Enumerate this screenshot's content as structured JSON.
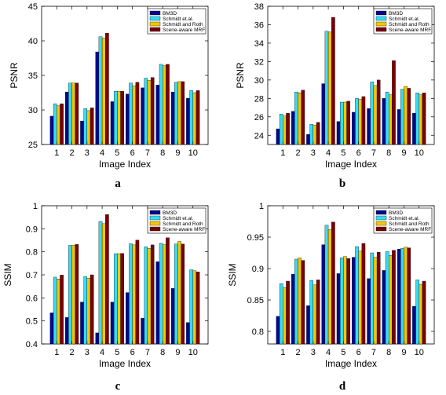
{
  "chart_data": [
    {
      "type": "bar",
      "panel_letter": "a",
      "categories": [
        "1",
        "2",
        "3",
        "4",
        "5",
        "6",
        "7",
        "8",
        "9",
        "10"
      ],
      "xlabel": "Image Index",
      "ylabel": "PSNR",
      "ylim": [
        25,
        45
      ],
      "yticks": [
        25,
        30,
        35,
        40,
        45
      ],
      "legend_position": "top-right",
      "series": [
        {
          "name": "BM3D",
          "color": "#000a8c",
          "values": [
            29.1,
            32.6,
            28.4,
            38.4,
            31.2,
            32.3,
            33.2,
            33.6,
            32.6,
            31.7
          ]
        },
        {
          "name": "Schmidt et.al.",
          "color": "#35dcf5",
          "values": [
            30.9,
            33.9,
            30.2,
            40.6,
            32.7,
            33.9,
            34.6,
            36.6,
            34.0,
            32.8
          ]
        },
        {
          "name": "Schmidt and Roth",
          "color": "#f2c800",
          "values": [
            30.6,
            33.9,
            29.9,
            40.4,
            32.7,
            33.5,
            34.3,
            36.4,
            34.1,
            32.5
          ]
        },
        {
          "name": "Scene-aware MRF",
          "color": "#7a0000",
          "values": [
            30.9,
            33.9,
            30.3,
            41.1,
            32.7,
            34.0,
            34.7,
            36.6,
            34.1,
            32.8
          ]
        }
      ]
    },
    {
      "type": "bar",
      "panel_letter": "b",
      "categories": [
        "1",
        "2",
        "3",
        "4",
        "5",
        "6",
        "7",
        "8",
        "9",
        "10"
      ],
      "xlabel": "Image Index",
      "ylabel": "PSNR",
      "ylim": [
        23,
        38
      ],
      "yticks": [
        24,
        26,
        28,
        30,
        32,
        34,
        36,
        38
      ],
      "legend_position": "top-right",
      "series": [
        {
          "name": "BM3D",
          "color": "#000a8c",
          "values": [
            24.7,
            26.6,
            24.1,
            29.6,
            25.5,
            26.5,
            26.9,
            28.0,
            26.8,
            26.4
          ]
        },
        {
          "name": "Schmidt et.al.",
          "color": "#35dcf5",
          "values": [
            26.3,
            28.7,
            25.2,
            35.3,
            27.6,
            28.0,
            29.8,
            28.7,
            29.0,
            28.6
          ]
        },
        {
          "name": "Schmidt and Roth",
          "color": "#f2c800",
          "values": [
            26.1,
            28.6,
            25.1,
            35.2,
            27.6,
            27.9,
            29.4,
            28.4,
            29.3,
            28.4
          ]
        },
        {
          "name": "Scene-aware MRF",
          "color": "#7a0000",
          "values": [
            26.4,
            28.9,
            25.4,
            36.8,
            27.7,
            28.2,
            30.0,
            32.1,
            29.1,
            28.6
          ]
        }
      ]
    },
    {
      "type": "bar",
      "panel_letter": "c",
      "categories": [
        "1",
        "2",
        "3",
        "4",
        "5",
        "6",
        "7",
        "8",
        "9",
        "10"
      ],
      "xlabel": "Image Index",
      "ylabel": "SSIM",
      "ylim": [
        0.4,
        1.0
      ],
      "yticks": [
        0.4,
        0.5,
        0.6,
        0.7,
        0.8,
        0.9,
        1
      ],
      "legend_position": "top-right",
      "series": [
        {
          "name": "BM3D",
          "color": "#000a8c",
          "values": [
            0.535,
            0.515,
            0.582,
            0.448,
            0.582,
            0.623,
            0.512,
            0.757,
            0.641,
            0.493
          ]
        },
        {
          "name": "Schmidt et.al.",
          "color": "#35dcf5",
          "values": [
            0.69,
            0.828,
            0.693,
            0.932,
            0.792,
            0.835,
            0.822,
            0.837,
            0.834,
            0.722
          ]
        },
        {
          "name": "Schmidt and Roth",
          "color": "#f2c800",
          "values": [
            0.682,
            0.828,
            0.685,
            0.922,
            0.792,
            0.83,
            0.815,
            0.831,
            0.845,
            0.718
          ]
        },
        {
          "name": "Scene-aware MRF",
          "color": "#7a0000",
          "values": [
            0.699,
            0.832,
            0.7,
            0.962,
            0.793,
            0.851,
            0.83,
            0.861,
            0.834,
            0.713
          ]
        }
      ]
    },
    {
      "type": "bar",
      "panel_letter": "d",
      "categories": [
        "1",
        "2",
        "3",
        "4",
        "5",
        "6",
        "7",
        "8",
        "9",
        "10"
      ],
      "xlabel": "Image Index",
      "ylabel": "SSIM",
      "ylim": [
        0.78,
        1.0
      ],
      "yticks": [
        0.8,
        0.85,
        0.9,
        0.95,
        1
      ],
      "legend_position": "top-right",
      "series": [
        {
          "name": "BM3D",
          "color": "#000a8c",
          "values": [
            0.824,
            0.891,
            0.841,
            0.938,
            0.892,
            0.918,
            0.884,
            0.897,
            0.931,
            0.84
          ]
        },
        {
          "name": "Schmidt et.al.",
          "color": "#35dcf5",
          "values": [
            0.876,
            0.915,
            0.881,
            0.969,
            0.917,
            0.935,
            0.925,
            0.927,
            0.932,
            0.882
          ]
        },
        {
          "name": "Schmidt and Roth",
          "color": "#f2c800",
          "values": [
            0.87,
            0.917,
            0.874,
            0.962,
            0.919,
            0.928,
            0.918,
            0.921,
            0.934,
            0.875
          ]
        },
        {
          "name": "Scene-aware MRF",
          "color": "#7a0000",
          "values": [
            0.88,
            0.913,
            0.882,
            0.974,
            0.916,
            0.94,
            0.926,
            0.929,
            0.933,
            0.88
          ]
        }
      ]
    }
  ]
}
